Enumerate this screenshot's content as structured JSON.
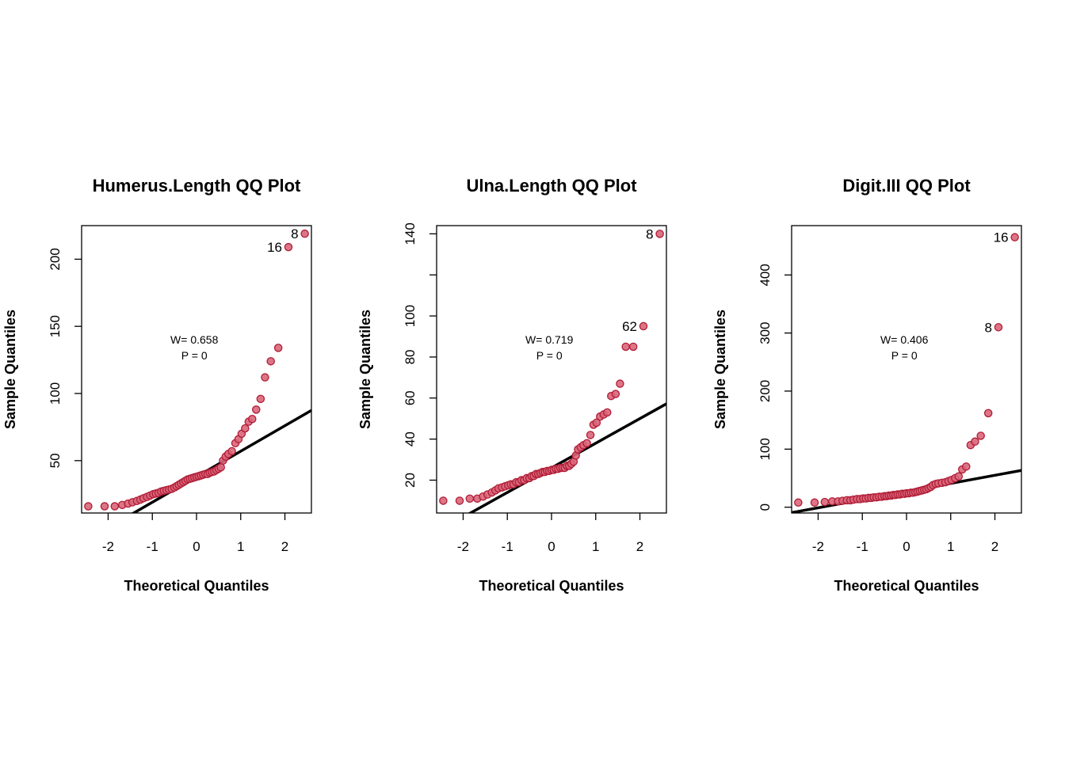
{
  "chart_data": [
    {
      "type": "scatter",
      "title": "Humerus.Length QQ Plot",
      "xlabel": "Theoretical Quantiles",
      "ylabel": "Sample Quantiles",
      "xlim": [
        -2.6,
        2.6
      ],
      "ylim": [
        11,
        225
      ],
      "xticks": [
        -2,
        -1,
        0,
        1,
        2
      ],
      "yticks": [
        50,
        100,
        150,
        200
      ],
      "stat_w": "W= 0.658",
      "stat_p": "P =  0",
      "line": {
        "intercept": 38,
        "slope": 19
      },
      "points": [
        [
          -2.45,
          16
        ],
        [
          -2.08,
          16
        ],
        [
          -1.85,
          16
        ],
        [
          -1.68,
          17
        ],
        [
          -1.55,
          18
        ],
        [
          -1.45,
          19
        ],
        [
          -1.35,
          20
        ],
        [
          -1.27,
          21
        ],
        [
          -1.2,
          22
        ],
        [
          -1.12,
          23
        ],
        [
          -1.05,
          24
        ],
        [
          -0.98,
          25
        ],
        [
          -0.92,
          25.5
        ],
        [
          -0.86,
          26
        ],
        [
          -0.8,
          27
        ],
        [
          -0.74,
          27.5
        ],
        [
          -0.68,
          28
        ],
        [
          -0.62,
          28.5
        ],
        [
          -0.56,
          29
        ],
        [
          -0.5,
          30
        ],
        [
          -0.45,
          31
        ],
        [
          -0.4,
          32
        ],
        [
          -0.35,
          33
        ],
        [
          -0.3,
          34
        ],
        [
          -0.25,
          35
        ],
        [
          -0.2,
          36
        ],
        [
          -0.15,
          36.5
        ],
        [
          -0.1,
          37
        ],
        [
          -0.05,
          37.5
        ],
        [
          0,
          38
        ],
        [
          0.05,
          38.5
        ],
        [
          0.1,
          39
        ],
        [
          0.15,
          39.5
        ],
        [
          0.2,
          40
        ],
        [
          0.25,
          40
        ],
        [
          0.3,
          41
        ],
        [
          0.35,
          41.5
        ],
        [
          0.4,
          42
        ],
        [
          0.45,
          43
        ],
        [
          0.5,
          44
        ],
        [
          0.55,
          45
        ],
        [
          0.6,
          50
        ],
        [
          0.66,
          53
        ],
        [
          0.72,
          55
        ],
        [
          0.8,
          57
        ],
        [
          0.88,
          63
        ],
        [
          0.95,
          66
        ],
        [
          1.02,
          70
        ],
        [
          1.1,
          74
        ],
        [
          1.18,
          79
        ],
        [
          1.26,
          81
        ],
        [
          1.35,
          88
        ],
        [
          1.45,
          96
        ],
        [
          1.55,
          112
        ],
        [
          1.68,
          124
        ],
        [
          1.85,
          134
        ],
        [
          2.08,
          209
        ],
        [
          2.45,
          219
        ]
      ],
      "outliers": [
        {
          "label": "16",
          "x": 2.08,
          "y": 209
        },
        {
          "label": "8",
          "x": 2.45,
          "y": 219
        }
      ]
    },
    {
      "type": "scatter",
      "title": "Ulna.Length QQ Plot",
      "xlabel": "Theoretical Quantiles",
      "ylabel": "Sample Quantiles",
      "xlim": [
        -2.6,
        2.6
      ],
      "ylim": [
        4,
        144
      ],
      "xticks": [
        -2,
        -1,
        0,
        1,
        2
      ],
      "yticks": [
        20,
        40,
        60,
        80,
        100,
        120,
        140
      ],
      "ytick_labels": [
        "20",
        "40",
        "60",
        "80",
        "100",
        "",
        "140"
      ],
      "stat_w": "W= 0.719",
      "stat_p": "P =  0",
      "line": {
        "intercept": 26,
        "slope": 12
      },
      "points": [
        [
          -2.45,
          10
        ],
        [
          -2.08,
          10
        ],
        [
          -1.85,
          11
        ],
        [
          -1.68,
          11
        ],
        [
          -1.55,
          12
        ],
        [
          -1.45,
          13
        ],
        [
          -1.35,
          14
        ],
        [
          -1.27,
          15
        ],
        [
          -1.2,
          16
        ],
        [
          -1.12,
          16.5
        ],
        [
          -1.05,
          17
        ],
        [
          -0.98,
          17.5
        ],
        [
          -0.92,
          18
        ],
        [
          -0.86,
          18
        ],
        [
          -0.8,
          19
        ],
        [
          -0.74,
          19
        ],
        [
          -0.68,
          20
        ],
        [
          -0.62,
          20
        ],
        [
          -0.56,
          21
        ],
        [
          -0.5,
          21
        ],
        [
          -0.45,
          22
        ],
        [
          -0.4,
          22
        ],
        [
          -0.35,
          23
        ],
        [
          -0.3,
          23
        ],
        [
          -0.25,
          23.5
        ],
        [
          -0.2,
          24
        ],
        [
          -0.15,
          24
        ],
        [
          -0.1,
          24.5
        ],
        [
          -0.05,
          24.5
        ],
        [
          0,
          25
        ],
        [
          0.05,
          25
        ],
        [
          0.1,
          25.5
        ],
        [
          0.15,
          25.5
        ],
        [
          0.2,
          26
        ],
        [
          0.25,
          26
        ],
        [
          0.3,
          26
        ],
        [
          0.35,
          27
        ],
        [
          0.4,
          27
        ],
        [
          0.45,
          28
        ],
        [
          0.5,
          29
        ],
        [
          0.55,
          32
        ],
        [
          0.6,
          35
        ],
        [
          0.66,
          36
        ],
        [
          0.72,
          37
        ],
        [
          0.8,
          38
        ],
        [
          0.88,
          42
        ],
        [
          0.95,
          47
        ],
        [
          1.02,
          48
        ],
        [
          1.1,
          51
        ],
        [
          1.18,
          52
        ],
        [
          1.26,
          53
        ],
        [
          1.35,
          61
        ],
        [
          1.45,
          62
        ],
        [
          1.55,
          67
        ],
        [
          1.68,
          85
        ],
        [
          1.85,
          85
        ],
        [
          2.08,
          95
        ],
        [
          2.45,
          140
        ]
      ],
      "outliers": [
        {
          "label": "62",
          "x": 2.08,
          "y": 95
        },
        {
          "label": "8",
          "x": 2.45,
          "y": 140
        }
      ]
    },
    {
      "type": "scatter",
      "title": "Digit.III QQ Plot",
      "xlabel": "Theoretical Quantiles",
      "ylabel": "Sample Quantiles",
      "xlim": [
        -2.6,
        2.6
      ],
      "ylim": [
        -10,
        485
      ],
      "xticks": [
        -2,
        -1,
        0,
        1,
        2
      ],
      "yticks": [
        0,
        100,
        200,
        300,
        400
      ],
      "stat_w": "W= 0.406",
      "stat_p": "P =  0",
      "line": {
        "intercept": 27,
        "slope": 14
      },
      "points": [
        [
          -2.45,
          8
        ],
        [
          -2.08,
          8
        ],
        [
          -1.85,
          9
        ],
        [
          -1.68,
          10
        ],
        [
          -1.55,
          10
        ],
        [
          -1.45,
          11
        ],
        [
          -1.35,
          12
        ],
        [
          -1.27,
          12
        ],
        [
          -1.2,
          13
        ],
        [
          -1.12,
          14
        ],
        [
          -1.05,
          14
        ],
        [
          -0.98,
          15
        ],
        [
          -0.92,
          15
        ],
        [
          -0.86,
          16
        ],
        [
          -0.8,
          16
        ],
        [
          -0.74,
          17
        ],
        [
          -0.68,
          17
        ],
        [
          -0.62,
          18
        ],
        [
          -0.56,
          18
        ],
        [
          -0.5,
          19
        ],
        [
          -0.45,
          19
        ],
        [
          -0.4,
          20
        ],
        [
          -0.35,
          20
        ],
        [
          -0.3,
          21
        ],
        [
          -0.25,
          21
        ],
        [
          -0.2,
          22
        ],
        [
          -0.15,
          22
        ],
        [
          -0.1,
          23
        ],
        [
          -0.05,
          23
        ],
        [
          0,
          24
        ],
        [
          0.05,
          24
        ],
        [
          0.1,
          25
        ],
        [
          0.15,
          25
        ],
        [
          0.2,
          26
        ],
        [
          0.25,
          27
        ],
        [
          0.3,
          28
        ],
        [
          0.35,
          29
        ],
        [
          0.4,
          30
        ],
        [
          0.45,
          31
        ],
        [
          0.5,
          33
        ],
        [
          0.55,
          35
        ],
        [
          0.6,
          38
        ],
        [
          0.66,
          40
        ],
        [
          0.72,
          41
        ],
        [
          0.8,
          42
        ],
        [
          0.88,
          43
        ],
        [
          0.95,
          45
        ],
        [
          1.02,
          47
        ],
        [
          1.1,
          50
        ],
        [
          1.18,
          53
        ],
        [
          1.26,
          65
        ],
        [
          1.35,
          70
        ],
        [
          1.45,
          107
        ],
        [
          1.55,
          113
        ],
        [
          1.68,
          123
        ],
        [
          1.85,
          162
        ],
        [
          2.08,
          310
        ],
        [
          2.45,
          465
        ]
      ],
      "outliers": [
        {
          "label": "8",
          "x": 2.08,
          "y": 310
        },
        {
          "label": "16",
          "x": 2.45,
          "y": 465
        }
      ]
    }
  ],
  "colors": {
    "point_fill": "#d9667a",
    "point_stroke": "#b01c35",
    "line": "#000000",
    "axis": "#000000"
  }
}
